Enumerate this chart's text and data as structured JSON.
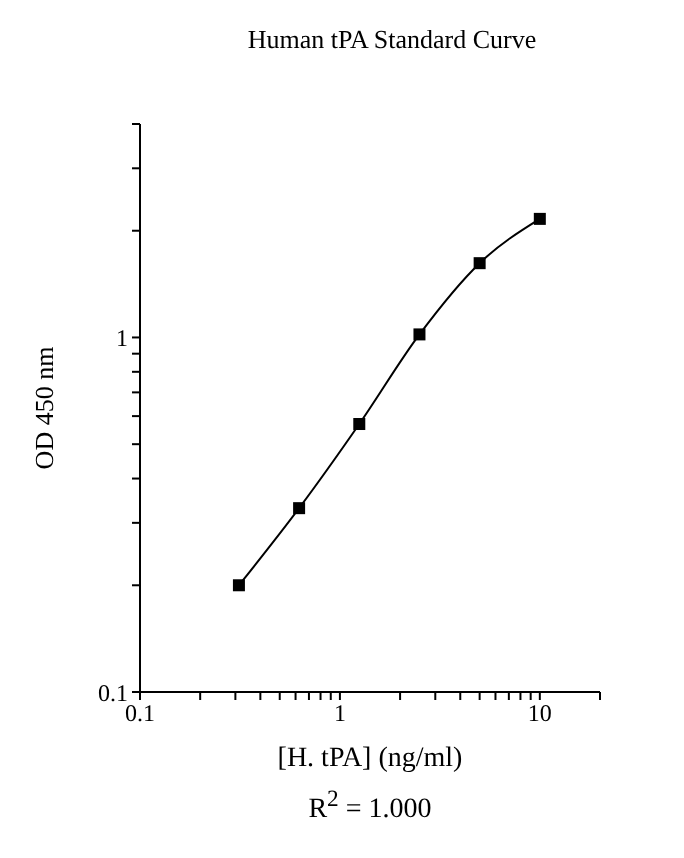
{
  "chart_data": {
    "type": "line",
    "title": "Human tPA Standard Curve",
    "xlabel": "[H. tPA] (ng/ml)",
    "ylabel": "OD 450 nm",
    "annotations": [
      "R$^{2}$ = 1.000"
    ],
    "x": [
      0.3125,
      0.625,
      1.25,
      2.5,
      5,
      10
    ],
    "series": [
      {
        "color": "#000000",
        "values": [
          0.2,
          0.33,
          0.57,
          1.02,
          1.62,
          2.16
        ]
      }
    ],
    "log": "xy",
    "marker": "square",
    "line_style": "solid",
    "xlim": [
      0.1,
      20
    ],
    "xticks": [
      0.1,
      {
        "value": 0.2,
        "label": null
      },
      {
        "value": 0.3,
        "label": null
      },
      {
        "value": 0.4,
        "label": null
      },
      {
        "value": 0.5,
        "label": null
      },
      {
        "value": 0.6,
        "label": null
      },
      {
        "value": 0.7,
        "label": null
      },
      {
        "value": 0.8,
        "label": null
      },
      {
        "value": 0.9,
        "label": null
      },
      1,
      {
        "value": 2,
        "label": null
      },
      {
        "value": 3,
        "label": null
      },
      {
        "value": 4,
        "label": null
      },
      {
        "value": 5,
        "label": null
      },
      {
        "value": 6,
        "label": null
      },
      {
        "value": 7,
        "label": null
      },
      {
        "value": 8,
        "label": null
      },
      {
        "value": 9,
        "label": null
      },
      10,
      {
        "value": 20,
        "label": null
      }
    ],
    "ylim": [
      0.1,
      4
    ],
    "yticks": [
      0.1,
      {
        "value": 0.2,
        "label": null
      },
      {
        "value": 0.3,
        "label": null
      },
      {
        "value": 0.4,
        "label": null
      },
      {
        "value": 0.5,
        "label": null
      },
      {
        "value": 0.6,
        "label": null
      },
      {
        "value": 0.7,
        "label": null
      },
      {
        "value": 0.8,
        "label": null
      },
      {
        "value": 0.9,
        "label": null
      },
      1,
      {
        "value": 2,
        "label": null
      },
      {
        "value": 3,
        "label": null
      },
      {
        "value": 4,
        "label": null
      }
    ]
  }
}
